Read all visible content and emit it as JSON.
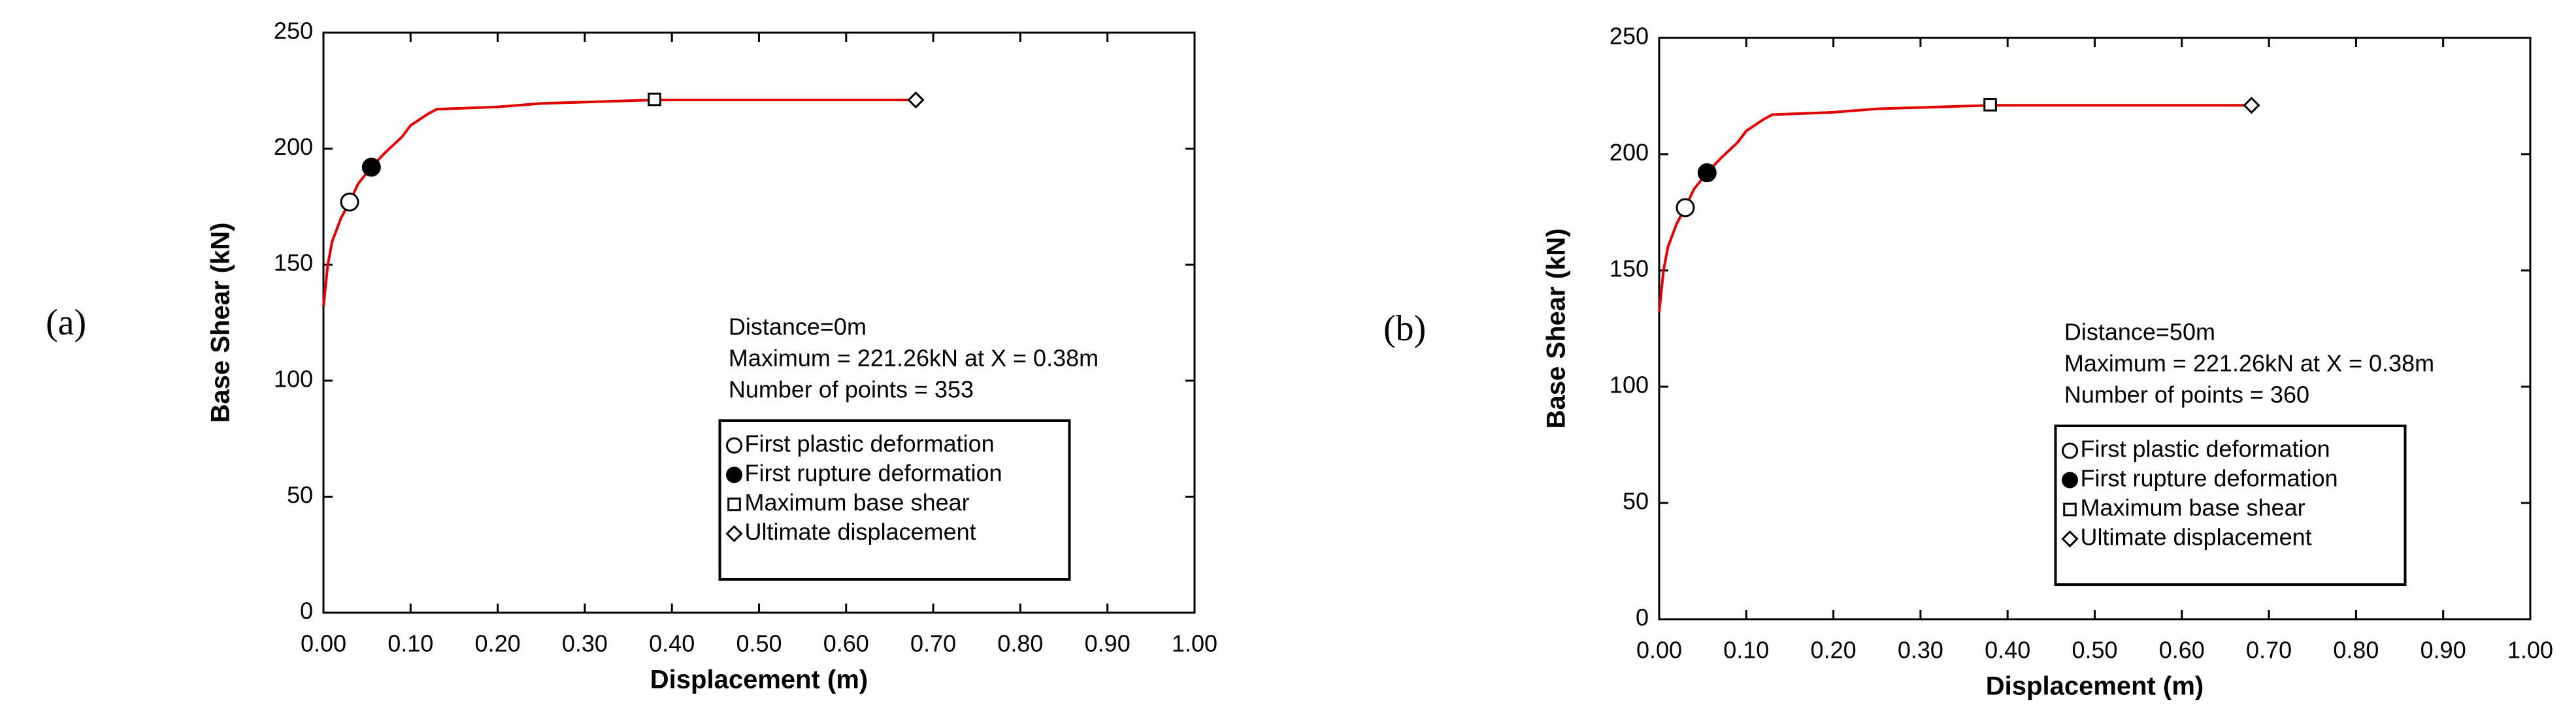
{
  "chart_data": [
    {
      "type": "line",
      "panel_label": "(a)",
      "xlabel": "Displacement (m)",
      "ylabel": "Base Shear (kN)",
      "xlim": [
        0,
        1
      ],
      "ylim": [
        0,
        250
      ],
      "xticks": [
        {
          "value": 0,
          "label": "0.00"
        },
        {
          "value": 0.1,
          "label": "0.10"
        },
        {
          "value": 0.2,
          "label": "0.20"
        },
        {
          "value": 0.3,
          "label": "0.30"
        },
        {
          "value": 0.4,
          "label": "0.40"
        },
        {
          "value": 0.5,
          "label": "0.50"
        },
        {
          "value": 0.6,
          "label": "0.60"
        },
        {
          "value": 0.7,
          "label": "0.70"
        },
        {
          "value": 0.8,
          "label": "0.80"
        },
        {
          "value": 0.9,
          "label": "0.90"
        },
        {
          "value": 1,
          "label": "1.00"
        }
      ],
      "yticks": [
        0,
        50,
        100,
        150,
        200,
        250
      ],
      "color": "#e00000",
      "x": [
        0,
        0.005,
        0.01,
        0.02,
        0.03,
        0.04,
        0.055,
        0.07,
        0.09,
        0.1,
        0.12,
        0.13,
        0.2,
        0.25,
        0.38,
        0.5,
        0.68
      ],
      "values": [
        132,
        150,
        160,
        170,
        177,
        185,
        192,
        198,
        205,
        210,
        215,
        217,
        218,
        219.5,
        221,
        221,
        221
      ],
      "series": [
        {
          "name": "First plastic deformation",
          "marker": "circle-open",
          "x": [
            0.03
          ],
          "values": [
            177
          ]
        },
        {
          "name": "First rupture deformation",
          "marker": "circle-filled",
          "x": [
            0.055
          ],
          "values": [
            192
          ]
        },
        {
          "name": "Maximum base shear",
          "marker": "square-open",
          "x": [
            0.38
          ],
          "values": [
            221.26
          ]
        },
        {
          "name": "Ultimate displacement",
          "marker": "diamond-open",
          "x": [
            0.68
          ],
          "values": [
            221
          ]
        }
      ],
      "annotations": [
        "Distance=0m",
        "Maximum = 221.26kN at X = 0.38m",
        "Number of points = 353"
      ]
    },
    {
      "type": "line",
      "panel_label": "(b)",
      "xlabel": "Displacement (m)",
      "ylabel": "Base Shear (kN)",
      "xlim": [
        0,
        1
      ],
      "ylim": [
        0,
        250
      ],
      "xticks": [
        {
          "value": 0,
          "label": "0.00"
        },
        {
          "value": 0.1,
          "label": "0.10"
        },
        {
          "value": 0.2,
          "label": "0.20"
        },
        {
          "value": 0.3,
          "label": "0.30"
        },
        {
          "value": 0.4,
          "label": "0.40"
        },
        {
          "value": 0.5,
          "label": "0.50"
        },
        {
          "value": 0.6,
          "label": "0.60"
        },
        {
          "value": 0.7,
          "label": "0.70"
        },
        {
          "value": 0.8,
          "label": "0.80"
        },
        {
          "value": 0.9,
          "label": "0.90"
        },
        {
          "value": 1,
          "label": "1.00"
        }
      ],
      "yticks": [
        0,
        50,
        100,
        150,
        200,
        250
      ],
      "color": "#e00000",
      "x": [
        0,
        0.005,
        0.01,
        0.02,
        0.03,
        0.04,
        0.055,
        0.07,
        0.09,
        0.1,
        0.12,
        0.13,
        0.2,
        0.25,
        0.38,
        0.5,
        0.68
      ],
      "values": [
        132,
        150,
        160,
        170,
        177,
        185,
        192,
        198,
        205,
        210,
        215,
        217,
        218,
        219.5,
        221,
        221,
        221
      ],
      "series": [
        {
          "name": "First plastic deformation",
          "marker": "circle-open",
          "x": [
            0.03
          ],
          "values": [
            177
          ]
        },
        {
          "name": "First rupture deformation",
          "marker": "circle-filled",
          "x": [
            0.055
          ],
          "values": [
            192
          ]
        },
        {
          "name": "Maximum base shear",
          "marker": "square-open",
          "x": [
            0.38
          ],
          "values": [
            221.26
          ]
        },
        {
          "name": "Ultimate displacement",
          "marker": "diamond-open",
          "x": [
            0.68
          ],
          "values": [
            221
          ]
        }
      ],
      "annotations": [
        "Distance=50m",
        "Maximum = 221.26kN at X = 0.38m",
        "Number of points = 360"
      ]
    }
  ]
}
